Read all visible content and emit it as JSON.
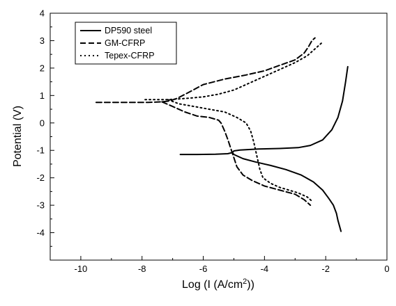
{
  "chart_data": {
    "type": "line",
    "title": "",
    "xlabel_prefix": "Log (I (A/cm",
    "xlabel_sup": "2",
    "xlabel_suffix": "))",
    "ylabel": "Potential (V)",
    "xlim": [
      -11,
      0
    ],
    "ylim": [
      -5,
      4
    ],
    "xticks": [
      -10,
      -8,
      -6,
      -4,
      -2,
      0
    ],
    "yticks": [
      -4,
      -3,
      -2,
      -1,
      0,
      1,
      2,
      3,
      4
    ],
    "legend_position": "top-left",
    "grid": false,
    "series": [
      {
        "name": "DP590 steel",
        "style": "solid",
        "x": [
          -6.75,
          -6.2,
          -5.6,
          -5.2,
          -5.05,
          -5.0,
          -4.8,
          -4.2,
          -3.5,
          -2.9,
          -2.5,
          -2.1,
          -1.8,
          -1.6,
          -1.45,
          -1.35,
          -1.28
        ],
        "y": [
          -1.15,
          -1.15,
          -1.14,
          -1.12,
          -1.08,
          -1.02,
          -0.99,
          -0.95,
          -0.93,
          -0.9,
          -0.82,
          -0.62,
          -0.25,
          0.2,
          0.8,
          1.5,
          2.05
        ],
        "x2": [
          -5.05,
          -5.0,
          -4.9,
          -4.7,
          -4.3,
          -3.8,
          -3.3,
          -2.8,
          -2.4,
          -2.1,
          -1.9,
          -1.75,
          -1.65,
          -1.6,
          -1.55,
          -1.5
        ],
        "y2": [
          -1.08,
          -1.15,
          -1.2,
          -1.3,
          -1.42,
          -1.55,
          -1.7,
          -1.9,
          -2.15,
          -2.45,
          -2.75,
          -3.0,
          -3.3,
          -3.55,
          -3.75,
          -3.95
        ]
      },
      {
        "name": "GM-CFRP",
        "style": "dashed",
        "x": [
          -9.5,
          -8.5,
          -7.8,
          -7.35,
          -7.1,
          -6.85,
          -6.5,
          -6.0,
          -5.3,
          -4.6,
          -4.0,
          -3.5,
          -3.0,
          -2.7,
          -2.55,
          -2.45,
          -2.35
        ],
        "y": [
          0.75,
          0.75,
          0.75,
          0.77,
          0.8,
          0.9,
          1.1,
          1.4,
          1.6,
          1.75,
          1.9,
          2.1,
          2.3,
          2.55,
          2.8,
          3.0,
          3.1
        ],
        "x2": [
          -7.35,
          -7.0,
          -6.6,
          -6.2,
          -5.8,
          -5.5,
          -5.42,
          -5.38,
          -5.3,
          -5.2,
          -5.05,
          -4.9,
          -4.7,
          -4.4,
          -4.0,
          -3.5,
          -3.0,
          -2.7,
          -2.5
        ],
        "y2": [
          0.77,
          0.6,
          0.4,
          0.25,
          0.2,
          0.1,
          0.0,
          -0.1,
          -0.3,
          -0.6,
          -1.1,
          -1.6,
          -1.9,
          -2.1,
          -2.3,
          -2.45,
          -2.6,
          -2.8,
          -3.0
        ]
      },
      {
        "name": "Tepex-CFRP",
        "style": "dotted",
        "x": [
          -7.9,
          -7.5,
          -7.15,
          -6.9,
          -6.5,
          -6.0,
          -5.5,
          -5.0,
          -4.5,
          -4.0,
          -3.5,
          -3.0,
          -2.6,
          -2.35,
          -2.2,
          -2.1
        ],
        "y": [
          0.85,
          0.85,
          0.85,
          0.87,
          0.9,
          0.95,
          1.05,
          1.2,
          1.45,
          1.7,
          1.95,
          2.2,
          2.45,
          2.7,
          2.85,
          2.95
        ],
        "x2": [
          -7.15,
          -6.8,
          -6.3,
          -5.8,
          -5.3,
          -4.9,
          -4.6,
          -4.45,
          -4.35,
          -4.25,
          -4.15,
          -4.05,
          -3.8,
          -3.5,
          -3.2,
          -2.9,
          -2.6,
          -2.45
        ],
        "y2": [
          0.85,
          0.7,
          0.6,
          0.5,
          0.4,
          0.2,
          0.0,
          -0.3,
          -0.7,
          -1.2,
          -1.7,
          -2.0,
          -2.2,
          -2.35,
          -2.45,
          -2.55,
          -2.7,
          -2.85
        ]
      }
    ]
  }
}
